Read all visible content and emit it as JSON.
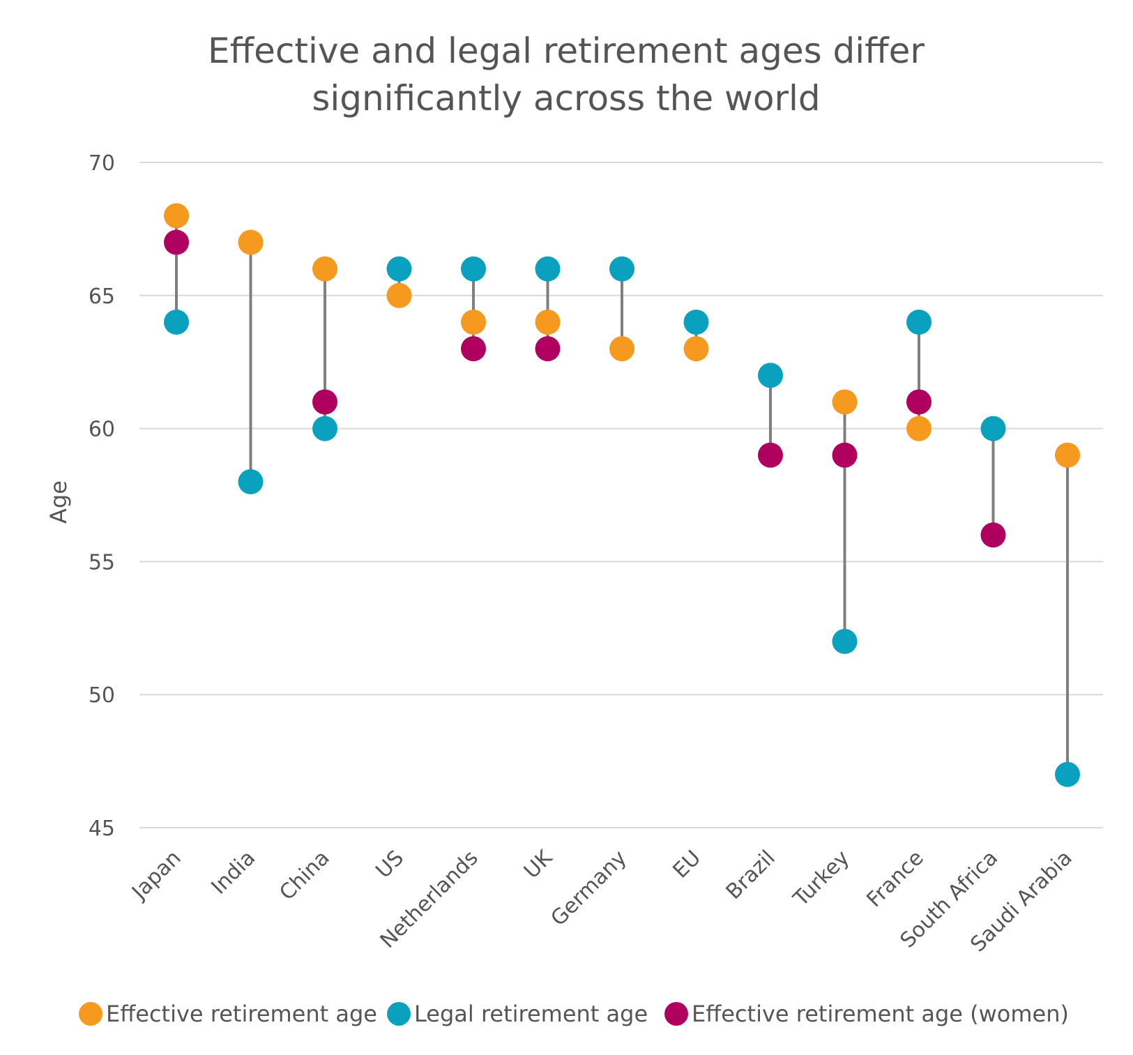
{
  "chart_data": {
    "type": "scatter",
    "title": [
      "Effective and legal retirement ages differ",
      "significantly across the world"
    ],
    "xlabel": "",
    "ylabel": "Age",
    "ylim": [
      45,
      70
    ],
    "yticks": [
      "45",
      "50",
      "55",
      "60",
      "65",
      "70"
    ],
    "grid": true,
    "legend_position": "bottom",
    "categories": [
      "Japan",
      "India",
      "China",
      "US",
      "Netherlands",
      "UK",
      "Germany",
      "EU",
      "Brazil",
      "Turkey",
      "France",
      "South Africa",
      "Saudi Arabia"
    ],
    "series": [
      {
        "name": "Effective retirement age",
        "color": "#f59a1f",
        "values": [
          68,
          67,
          66,
          65,
          64,
          64,
          63,
          63,
          null,
          61,
          60,
          null,
          59
        ]
      },
      {
        "name": "Legal retirement age",
        "color": "#0aa1bf",
        "values": [
          64,
          58,
          60,
          66,
          66,
          66,
          66,
          64,
          62,
          52,
          64,
          60,
          47
        ]
      },
      {
        "name": "Effective retirement age (women)",
        "color": "#b0005f",
        "values": [
          67,
          null,
          61,
          null,
          63,
          63,
          null,
          null,
          59,
          59,
          61,
          56,
          null
        ]
      }
    ],
    "connector_color": "#7f7f7f"
  }
}
